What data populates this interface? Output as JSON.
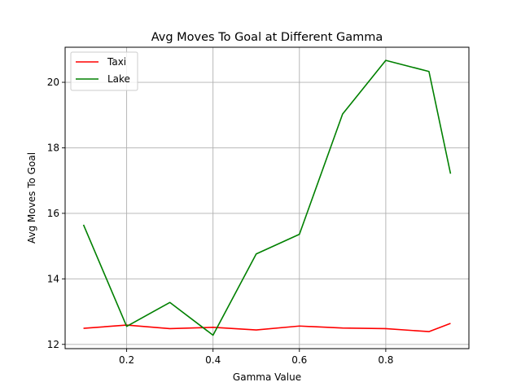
{
  "chart_data": {
    "type": "line",
    "title": "Avg Moves To Goal at Different Gamma",
    "xlabel": "Gamma Value",
    "ylabel": "Avg Moves To Goal",
    "xlim": [
      0.0575,
      0.9925
    ],
    "ylim": [
      11.87,
      21.07
    ],
    "xticks": [
      0.2,
      0.4,
      0.6,
      0.8
    ],
    "xtick_labels": [
      "0.2",
      "0.4",
      "0.6",
      "0.8"
    ],
    "yticks": [
      12,
      14,
      16,
      18,
      20
    ],
    "ytick_labels": [
      "12",
      "14",
      "16",
      "18",
      "20"
    ],
    "grid": true,
    "legend_position": "top-left",
    "x": [
      0.1,
      0.2,
      0.3,
      0.4,
      0.5,
      0.6,
      0.7,
      0.8,
      0.9,
      0.95
    ],
    "series": [
      {
        "name": "Taxi",
        "color": "#ff0000",
        "values": [
          12.49,
          12.59,
          12.48,
          12.52,
          12.44,
          12.56,
          12.5,
          12.48,
          12.39,
          12.64
        ]
      },
      {
        "name": "Lake",
        "color": "#008000",
        "values": [
          15.65,
          12.55,
          13.28,
          12.28,
          14.76,
          15.36,
          19.03,
          20.67,
          20.33,
          17.21
        ]
      }
    ]
  }
}
